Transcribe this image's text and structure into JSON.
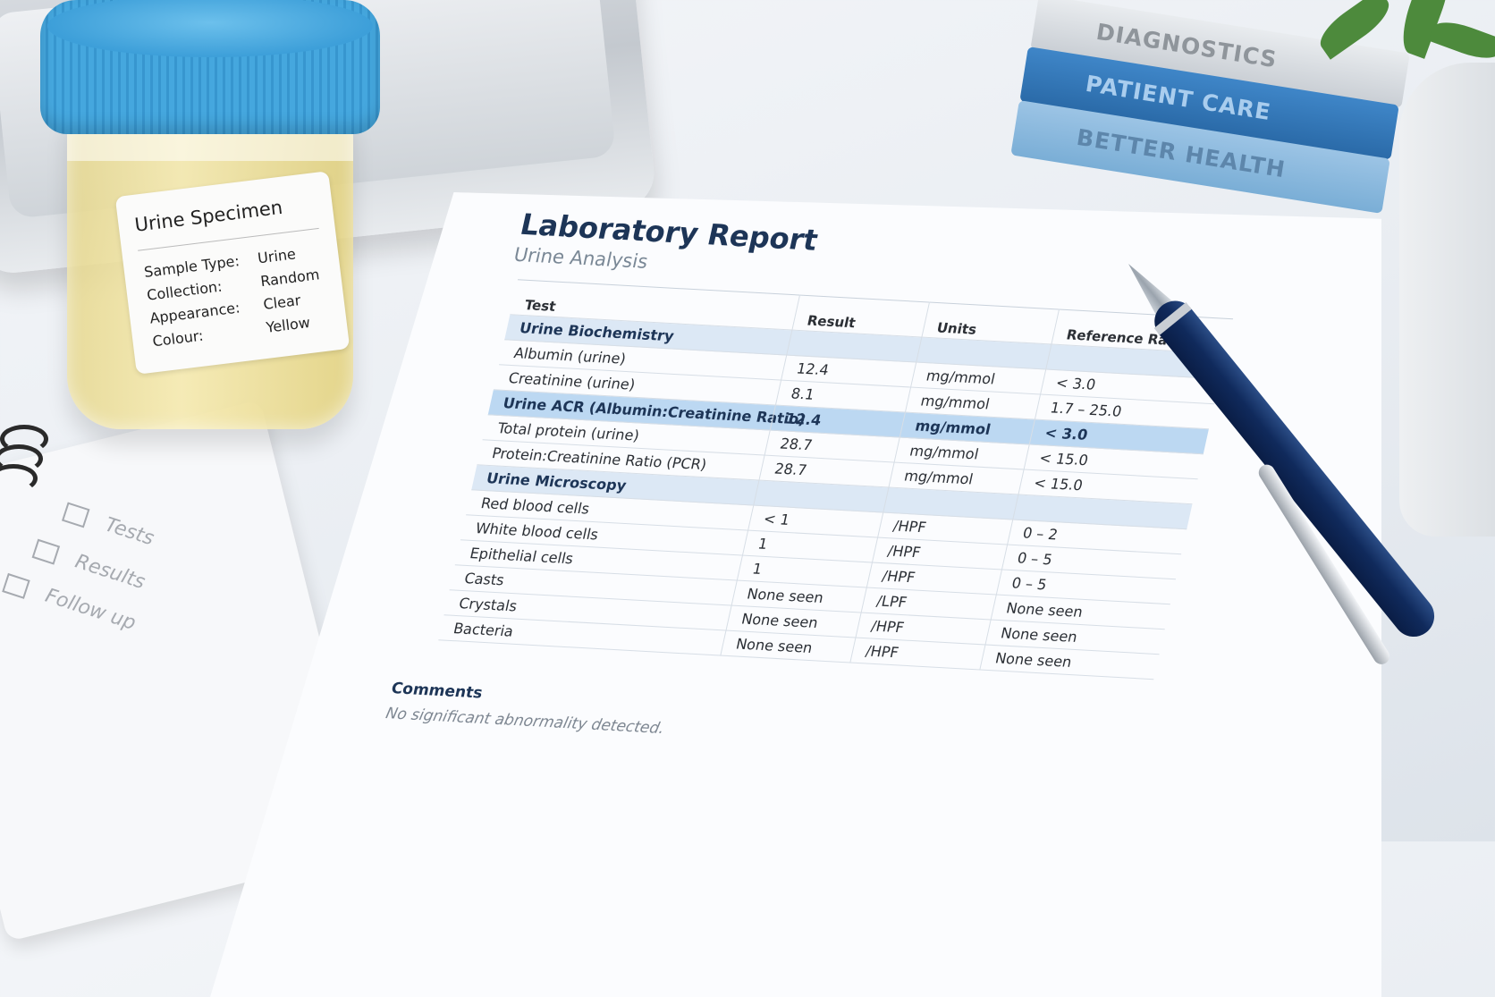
{
  "specimen_label": {
    "title": "Urine Specimen",
    "rows": [
      {
        "key": "Sample Type:",
        "value": "Urine"
      },
      {
        "key": "Collection:",
        "value": "Random"
      },
      {
        "key": "Appearance:",
        "value": "Clear"
      },
      {
        "key": "Colour:",
        "value": "Yellow"
      }
    ]
  },
  "notepad": {
    "items": [
      "Tests",
      "Results",
      "Follow up"
    ]
  },
  "books": [
    "DIAGNOSTICS",
    "PATIENT CARE",
    "BETTER HEALTH"
  ],
  "report": {
    "title": "Laboratory Report",
    "subtitle": "Urine Analysis",
    "headers": {
      "test": "Test",
      "result": "Result",
      "units": "Units",
      "range": "Reference Range"
    },
    "sections": [
      {
        "name": "Urine Biochemistry",
        "rows": [
          {
            "test": "Albumin (urine)",
            "result": "12.4",
            "units": "mg/mmol",
            "range": "< 3.0"
          },
          {
            "test": "Creatinine (urine)",
            "result": "8.1",
            "units": "mg/mmol",
            "range": "1.7 – 25.0"
          },
          {
            "test": "Urine ACR (Albumin:Creatinine Ratio)",
            "result": "12.4",
            "units": "mg/mmol",
            "range": "< 3.0",
            "highlight": true
          },
          {
            "test": "Total protein (urine)",
            "result": "28.7",
            "units": "mg/mmol",
            "range": "< 15.0"
          },
          {
            "test": "Protein:Creatinine Ratio (PCR)",
            "result": "28.7",
            "units": "mg/mmol",
            "range": "< 15.0"
          }
        ]
      },
      {
        "name": "Urine Microscopy",
        "rows": [
          {
            "test": "Red blood cells",
            "result": "< 1",
            "units": "/HPF",
            "range": "0 – 2"
          },
          {
            "test": "White blood cells",
            "result": "1",
            "units": "/HPF",
            "range": "0 – 5"
          },
          {
            "test": "Epithelial cells",
            "result": "1",
            "units": "/HPF",
            "range": "0 – 5"
          },
          {
            "test": "Casts",
            "result": "None seen",
            "units": "/LPF",
            "range": "None seen"
          },
          {
            "test": "Crystals",
            "result": "None seen",
            "units": "/HPF",
            "range": "None seen"
          },
          {
            "test": "Bacteria",
            "result": "None seen",
            "units": "/HPF",
            "range": "None seen"
          }
        ]
      }
    ],
    "comments_label": "Comments",
    "comments_text": "No significant abnormality detected."
  }
}
